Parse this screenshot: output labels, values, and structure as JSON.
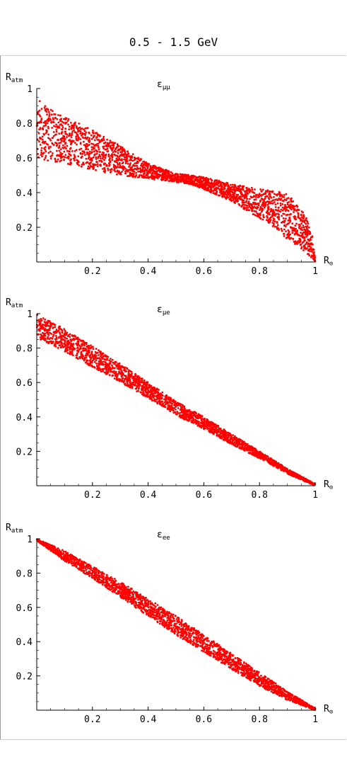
{
  "page_title": "0.5 - 1.5 GeV",
  "colors": {
    "points": "#ff0000",
    "axes": "#000000"
  },
  "chart_data": [
    {
      "type": "scatter",
      "title": "",
      "panel_label": {
        "base": "ε",
        "sub": "μμ"
      },
      "xlabel": {
        "base": "R",
        "sub": "⊙"
      },
      "ylabel": {
        "base": "R",
        "sub": "atm"
      },
      "xlim": [
        0,
        1
      ],
      "ylim": [
        0,
        1
      ],
      "x_ticks": [
        0.2,
        0.4,
        0.6,
        0.8,
        1
      ],
      "x_tick_labels": [
        "0.2",
        "0.4",
        "0.6",
        "0.8",
        "1"
      ],
      "y_ticks": [
        0.2,
        0.4,
        0.6,
        0.8,
        1
      ],
      "y_tick_labels": [
        "0.2",
        "0.4",
        "0.6",
        "0.8",
        "1"
      ],
      "grid": false,
      "series": [
        {
          "color": "#ff0000",
          "band_x": [
            0.0,
            0.05,
            0.1,
            0.2,
            0.3,
            0.4,
            0.45,
            0.5,
            0.55,
            0.6,
            0.7,
            0.8,
            0.86,
            0.9,
            0.94,
            0.97,
            0.99,
            1.0
          ],
          "band_lo": [
            0.6,
            0.58,
            0.57,
            0.53,
            0.5,
            0.48,
            0.47,
            0.46,
            0.45,
            0.42,
            0.35,
            0.25,
            0.19,
            0.13,
            0.09,
            0.05,
            0.02,
            0.0
          ],
          "band_hi": [
            1.0,
            0.88,
            0.84,
            0.76,
            0.67,
            0.57,
            0.54,
            0.51,
            0.5,
            0.49,
            0.45,
            0.42,
            0.41,
            0.39,
            0.33,
            0.25,
            0.15,
            0.02
          ],
          "n_points": 2400
        }
      ]
    },
    {
      "type": "scatter",
      "title": "",
      "panel_label": {
        "base": "ε",
        "sub": "μe"
      },
      "xlabel": {
        "base": "R",
        "sub": "⊙"
      },
      "ylabel": {
        "base": "R",
        "sub": "atm"
      },
      "xlim": [
        0,
        1
      ],
      "ylim": [
        0,
        1
      ],
      "x_ticks": [
        0.2,
        0.4,
        0.6,
        0.8,
        1
      ],
      "x_tick_labels": [
        "0.2",
        "0.4",
        "0.6",
        "0.8",
        "1"
      ],
      "y_ticks": [
        0.2,
        0.4,
        0.6,
        0.8,
        1
      ],
      "y_tick_labels": [
        "0.2",
        "0.4",
        "0.6",
        "0.8",
        "1"
      ],
      "grid": false,
      "series": [
        {
          "color": "#ff0000",
          "band_x": [
            0.0,
            0.1,
            0.2,
            0.3,
            0.4,
            0.5,
            0.6,
            0.7,
            0.8,
            0.9,
            1.0
          ],
          "band_lo": [
            0.86,
            0.78,
            0.69,
            0.6,
            0.51,
            0.41,
            0.33,
            0.24,
            0.16,
            0.07,
            0.0
          ],
          "band_hi": [
            1.0,
            0.91,
            0.81,
            0.71,
            0.6,
            0.49,
            0.4,
            0.3,
            0.2,
            0.1,
            0.01
          ],
          "n_points": 2200
        }
      ]
    },
    {
      "type": "scatter",
      "title": "",
      "panel_label": {
        "base": "ε",
        "sub": "ee"
      },
      "xlabel": {
        "base": "R",
        "sub": "⊙"
      },
      "ylabel": {
        "base": "R",
        "sub": "atm"
      },
      "xlim": [
        0,
        1
      ],
      "ylim": [
        0,
        1
      ],
      "x_ticks": [
        0.2,
        0.4,
        0.6,
        0.8,
        1
      ],
      "x_tick_labels": [
        "0.2",
        "0.4",
        "0.6",
        "0.8",
        "1"
      ],
      "y_ticks": [
        0.2,
        0.4,
        0.6,
        0.8,
        1
      ],
      "y_tick_labels": [
        "0.2",
        "0.4",
        "0.6",
        "0.8",
        "1"
      ],
      "grid": false,
      "series": [
        {
          "color": "#ff0000",
          "band_x": [
            0.0,
            0.1,
            0.2,
            0.3,
            0.4,
            0.5,
            0.6,
            0.7,
            0.8,
            0.9,
            1.0
          ],
          "band_lo": [
            0.99,
            0.87,
            0.77,
            0.66,
            0.55,
            0.44,
            0.34,
            0.24,
            0.14,
            0.06,
            0.0
          ],
          "band_hi": [
            1.0,
            0.93,
            0.84,
            0.75,
            0.65,
            0.55,
            0.44,
            0.33,
            0.22,
            0.11,
            0.01
          ],
          "n_points": 2200
        }
      ]
    }
  ]
}
